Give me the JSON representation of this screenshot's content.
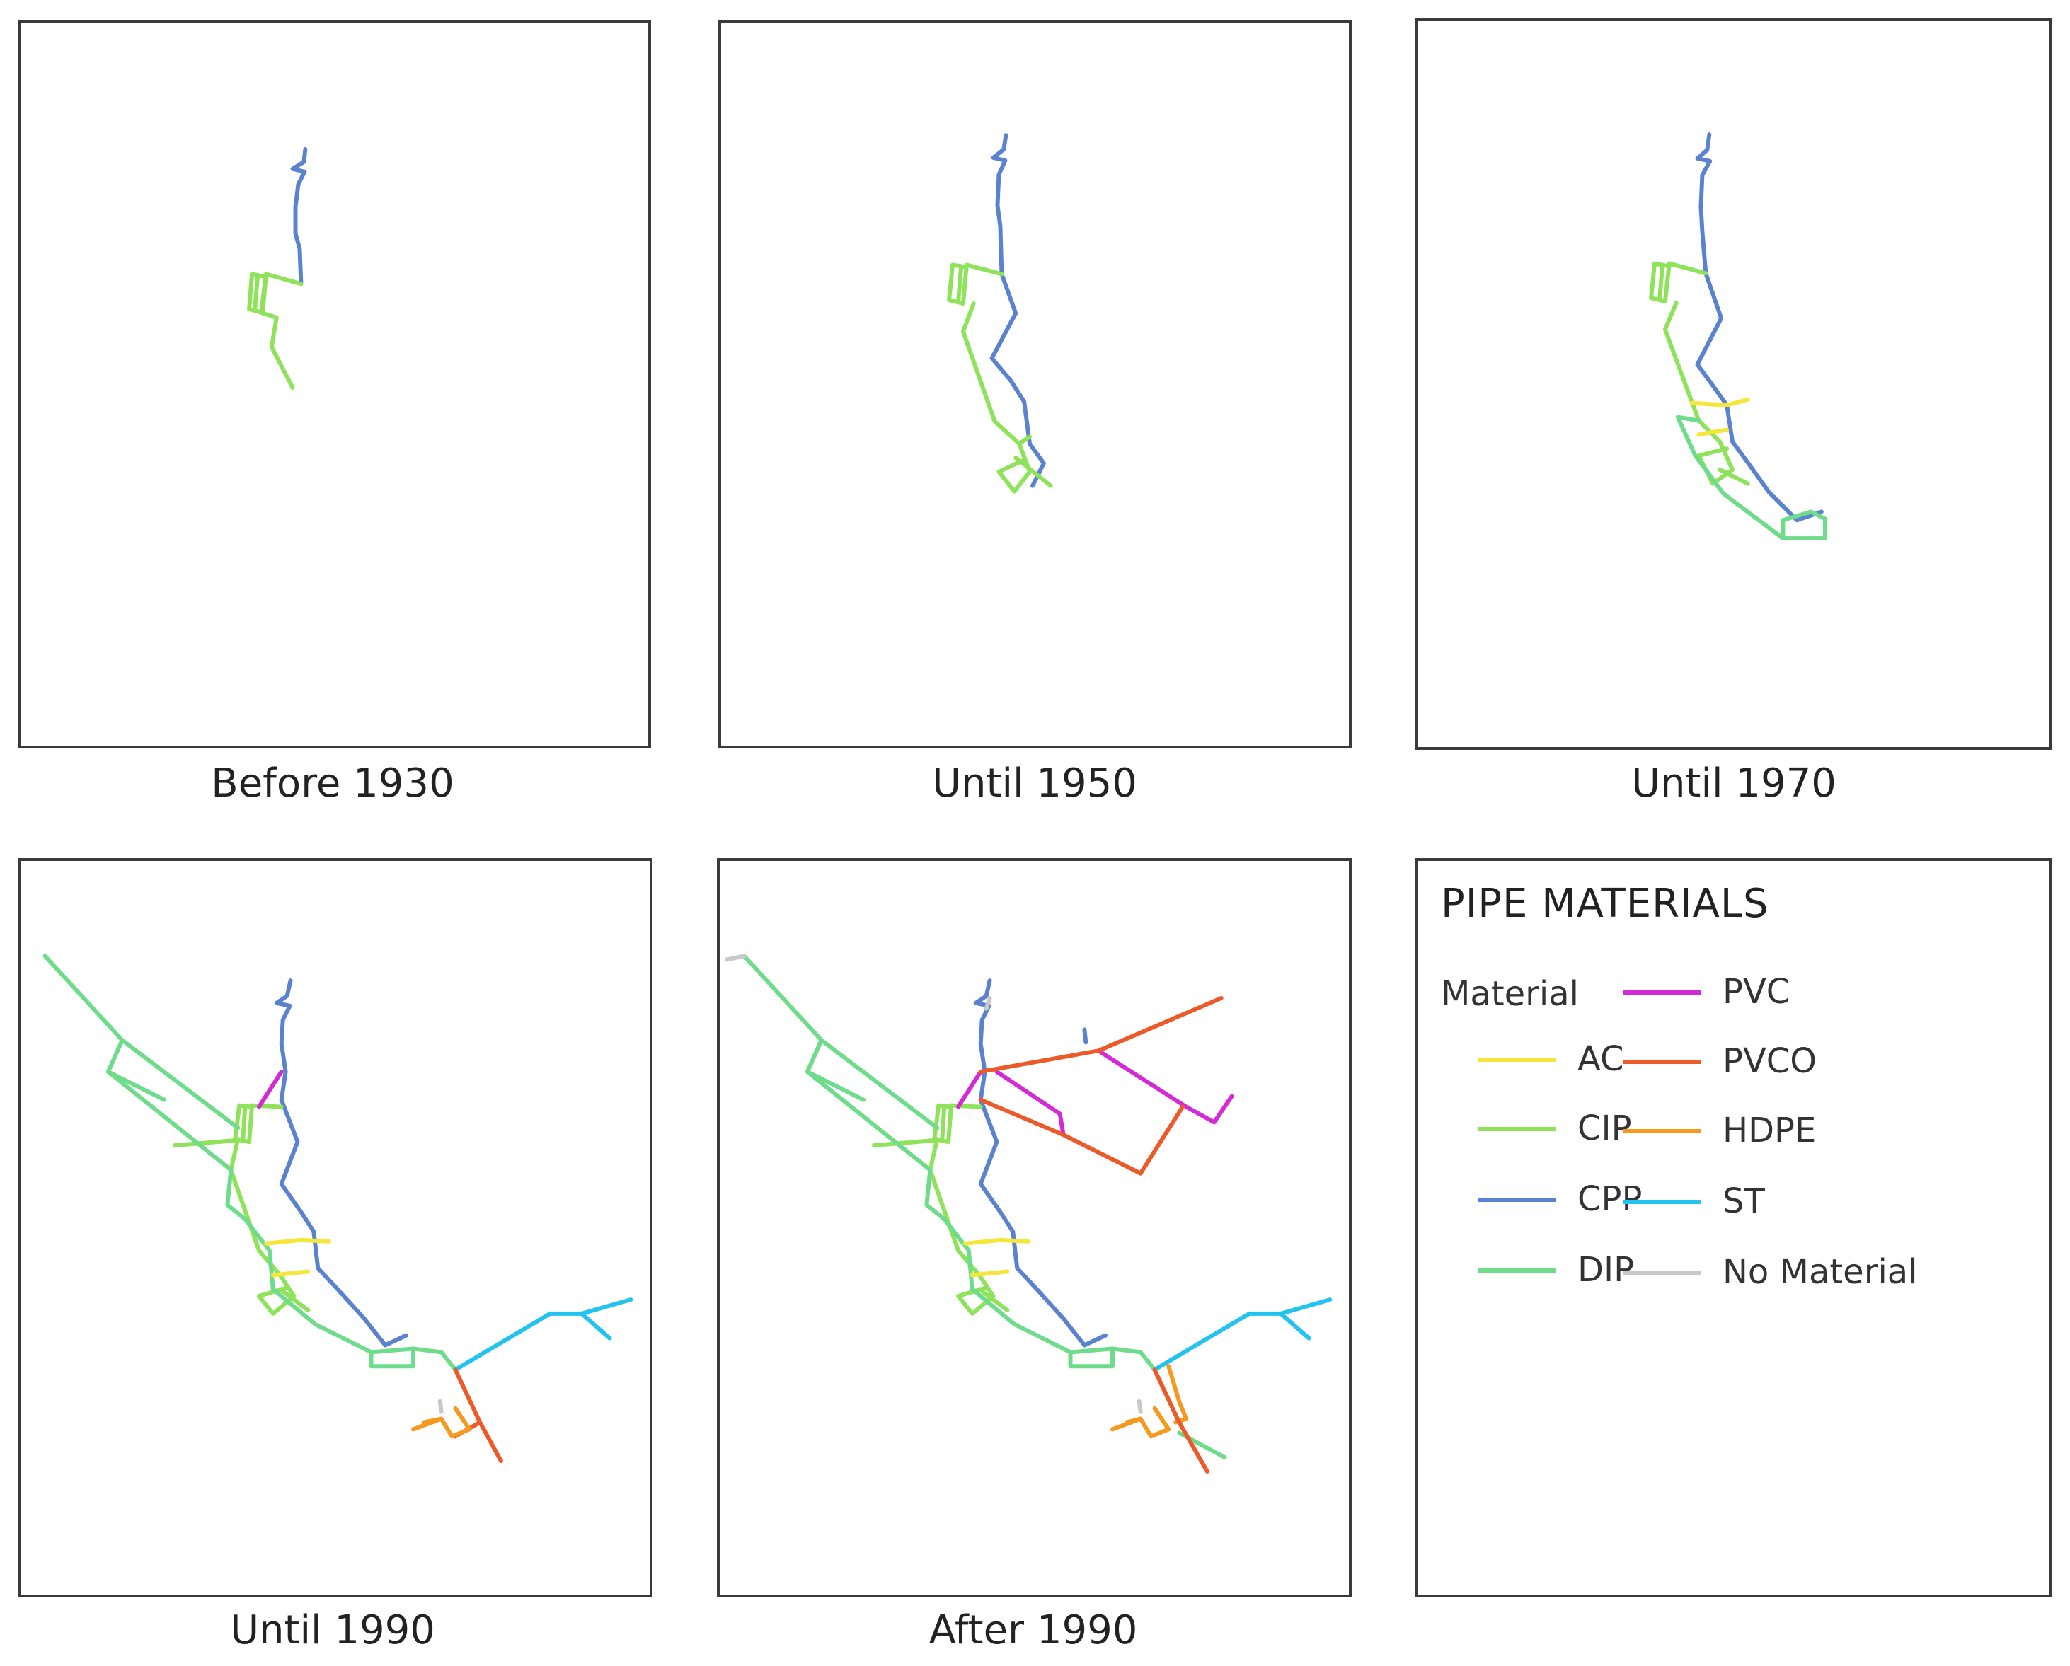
{
  "panels": [
    {
      "id": "p1",
      "caption": "Before 1930"
    },
    {
      "id": "p2",
      "caption": "Until 1950"
    },
    {
      "id": "p3",
      "caption": "Until 1970"
    },
    {
      "id": "p4",
      "caption": "Until 1990"
    },
    {
      "id": "p5",
      "caption": "After 1990"
    }
  ],
  "legend": {
    "title": "PIPE MATERIALS",
    "subtitle": "Material",
    "items": [
      {
        "label": "AC",
        "color": "#f5e63a"
      },
      {
        "label": "CIP",
        "color": "#8ee35a"
      },
      {
        "label": "CPP",
        "color": "#5b82cf"
      },
      {
        "label": "DIP",
        "color": "#6fdc8c"
      },
      {
        "label": "PVC",
        "color": "#d42ad6"
      },
      {
        "label": "PVCO",
        "color": "#ec5a2a"
      },
      {
        "label": "HDPE",
        "color": "#f59a1e"
      },
      {
        "label": "ST",
        "color": "#22c3ee"
      },
      {
        "label": "No Material",
        "color": "#c8c8c8"
      }
    ]
  }
}
